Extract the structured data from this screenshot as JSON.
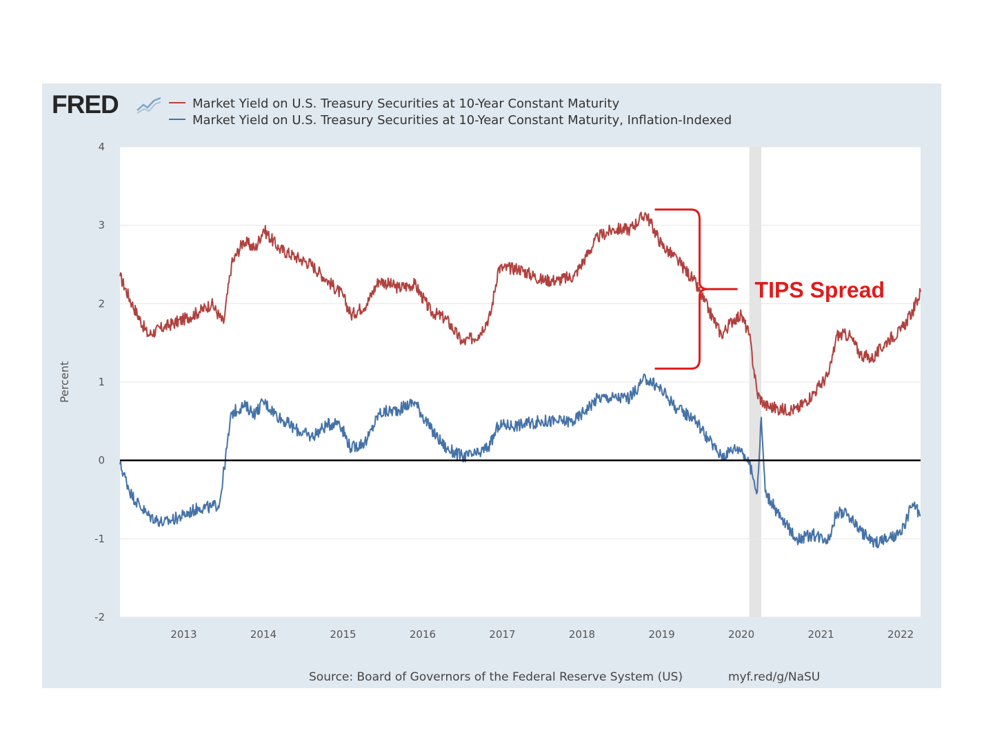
{
  "brand": {
    "logo_text": "FRED",
    "logo_icon": "chart-trend-icon"
  },
  "source": "Source: Board of Governors of the Federal Reserve System (US)",
  "short_url": "myf.red/g/NaSU",
  "colors": {
    "red_series": "#b0413e",
    "blue_series": "#4572a7",
    "annotation": "#e01b1b",
    "recession_band": "#e4e4e4"
  },
  "chart_data": {
    "type": "line",
    "title": "",
    "xlabel": "",
    "ylabel": "Percent",
    "xlim": [
      2012.2,
      2022.25
    ],
    "ylim": [
      -2,
      4
    ],
    "yticks": [
      -2,
      -1,
      0,
      1,
      2,
      3,
      4
    ],
    "xticks": [
      "2013",
      "2014",
      "2015",
      "2016",
      "2017",
      "2018",
      "2019",
      "2020",
      "2021",
      "2022"
    ],
    "grid": "horizontal",
    "legend_position": "top-left",
    "zero_line": true,
    "recession_band": [
      2020.1,
      2020.25
    ],
    "series": [
      {
        "name": "Market Yield on U.S. Treasury Securities at 10-Year Constant Maturity",
        "color": "#b0413e",
        "points": [
          [
            2012.2,
            2.35
          ],
          [
            2012.35,
            2.0
          ],
          [
            2012.55,
            1.6
          ],
          [
            2012.75,
            1.7
          ],
          [
            2013.0,
            1.8
          ],
          [
            2013.2,
            1.9
          ],
          [
            2013.35,
            2.0
          ],
          [
            2013.5,
            1.75
          ],
          [
            2013.6,
            2.5
          ],
          [
            2013.75,
            2.8
          ],
          [
            2013.9,
            2.7
          ],
          [
            2014.0,
            2.95
          ],
          [
            2014.2,
            2.7
          ],
          [
            2014.4,
            2.6
          ],
          [
            2014.6,
            2.5
          ],
          [
            2014.8,
            2.3
          ],
          [
            2015.0,
            2.1
          ],
          [
            2015.1,
            1.85
          ],
          [
            2015.3,
            2.0
          ],
          [
            2015.45,
            2.3
          ],
          [
            2015.7,
            2.2
          ],
          [
            2015.9,
            2.25
          ],
          [
            2016.1,
            1.9
          ],
          [
            2016.3,
            1.8
          ],
          [
            2016.5,
            1.5
          ],
          [
            2016.7,
            1.6
          ],
          [
            2016.85,
            1.85
          ],
          [
            2016.95,
            2.45
          ],
          [
            2017.2,
            2.45
          ],
          [
            2017.5,
            2.3
          ],
          [
            2017.7,
            2.3
          ],
          [
            2017.9,
            2.35
          ],
          [
            2018.05,
            2.6
          ],
          [
            2018.2,
            2.85
          ],
          [
            2018.4,
            2.95
          ],
          [
            2018.6,
            2.95
          ],
          [
            2018.8,
            3.15
          ],
          [
            2019.0,
            2.75
          ],
          [
            2019.2,
            2.55
          ],
          [
            2019.4,
            2.3
          ],
          [
            2019.6,
            1.9
          ],
          [
            2019.75,
            1.6
          ],
          [
            2019.9,
            1.8
          ],
          [
            2020.0,
            1.85
          ],
          [
            2020.1,
            1.6
          ],
          [
            2020.2,
            0.85
          ],
          [
            2020.3,
            0.7
          ],
          [
            2020.5,
            0.65
          ],
          [
            2020.7,
            0.65
          ],
          [
            2020.9,
            0.85
          ],
          [
            2021.1,
            1.1
          ],
          [
            2021.2,
            1.6
          ],
          [
            2021.35,
            1.6
          ],
          [
            2021.5,
            1.35
          ],
          [
            2021.65,
            1.3
          ],
          [
            2021.85,
            1.55
          ],
          [
            2022.0,
            1.65
          ],
          [
            2022.15,
            1.9
          ],
          [
            2022.25,
            2.15
          ]
        ]
      },
      {
        "name": "Market Yield on U.S. Treasury Securities at 10-Year Constant Maturity, Inflation-Indexed",
        "color": "#4572a7",
        "points": [
          [
            2012.2,
            -0.05
          ],
          [
            2012.35,
            -0.45
          ],
          [
            2012.55,
            -0.7
          ],
          [
            2012.75,
            -0.8
          ],
          [
            2013.0,
            -0.7
          ],
          [
            2013.2,
            -0.6
          ],
          [
            2013.35,
            -0.6
          ],
          [
            2013.45,
            -0.55
          ],
          [
            2013.6,
            0.6
          ],
          [
            2013.75,
            0.7
          ],
          [
            2013.9,
            0.6
          ],
          [
            2014.0,
            0.75
          ],
          [
            2014.2,
            0.55
          ],
          [
            2014.4,
            0.4
          ],
          [
            2014.6,
            0.3
          ],
          [
            2014.8,
            0.45
          ],
          [
            2014.95,
            0.5
          ],
          [
            2015.1,
            0.15
          ],
          [
            2015.3,
            0.25
          ],
          [
            2015.45,
            0.6
          ],
          [
            2015.7,
            0.65
          ],
          [
            2015.9,
            0.75
          ],
          [
            2016.1,
            0.4
          ],
          [
            2016.3,
            0.15
          ],
          [
            2016.5,
            0.05
          ],
          [
            2016.7,
            0.08
          ],
          [
            2016.85,
            0.2
          ],
          [
            2016.95,
            0.45
          ],
          [
            2017.2,
            0.45
          ],
          [
            2017.5,
            0.5
          ],
          [
            2017.7,
            0.5
          ],
          [
            2017.9,
            0.5
          ],
          [
            2018.05,
            0.65
          ],
          [
            2018.2,
            0.8
          ],
          [
            2018.4,
            0.8
          ],
          [
            2018.6,
            0.8
          ],
          [
            2018.8,
            1.05
          ],
          [
            2019.0,
            0.9
          ],
          [
            2019.2,
            0.65
          ],
          [
            2019.4,
            0.55
          ],
          [
            2019.6,
            0.25
          ],
          [
            2019.75,
            0.05
          ],
          [
            2019.9,
            0.15
          ],
          [
            2020.0,
            0.15
          ],
          [
            2020.1,
            -0.05
          ],
          [
            2020.2,
            -0.4
          ],
          [
            2020.25,
            0.55
          ],
          [
            2020.3,
            -0.4
          ],
          [
            2020.5,
            -0.75
          ],
          [
            2020.7,
            -1.0
          ],
          [
            2020.9,
            -0.95
          ],
          [
            2021.1,
            -1.0
          ],
          [
            2021.2,
            -0.65
          ],
          [
            2021.35,
            -0.7
          ],
          [
            2021.5,
            -0.9
          ],
          [
            2021.65,
            -1.05
          ],
          [
            2021.85,
            -1.0
          ],
          [
            2022.0,
            -0.95
          ],
          [
            2022.15,
            -0.55
          ],
          [
            2022.25,
            -0.7
          ]
        ]
      }
    ],
    "annotations": [
      {
        "text": "TIPS Spread",
        "x": 2019.0,
        "y_top": 3.2,
        "y_bottom": 1.17
      }
    ]
  }
}
